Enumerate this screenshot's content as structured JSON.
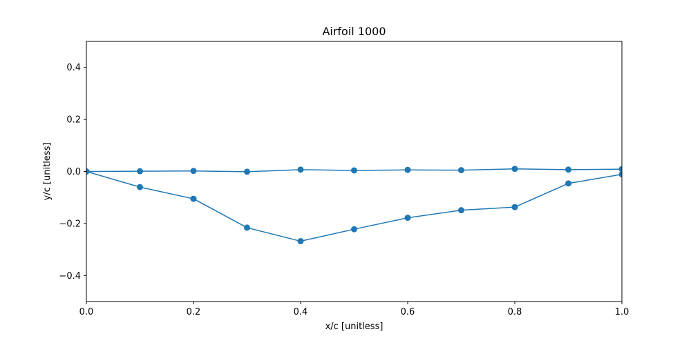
{
  "chart_data": {
    "type": "line",
    "title": "Airfoil 1000",
    "xlabel": "x/c [unitless]",
    "ylabel": "y/c [unitless]",
    "xlim": [
      0.0,
      1.0
    ],
    "ylim": [
      -0.5,
      0.5
    ],
    "xticks": [
      0.0,
      0.2,
      0.4,
      0.6,
      0.8,
      1.0
    ],
    "xtick_labels": [
      "0.0",
      "0.2",
      "0.4",
      "0.6",
      "0.8",
      "1.0"
    ],
    "yticks": [
      -0.4,
      -0.2,
      0.0,
      0.2,
      0.4
    ],
    "ytick_labels": [
      "−0.4",
      "−0.2",
      "0.0",
      "0.2",
      "0.4"
    ],
    "grid": false,
    "color": "#1f77b4",
    "series": [
      {
        "x": [
          0.0,
          0.1,
          0.2,
          0.3,
          0.4,
          0.5,
          0.6,
          0.7,
          0.8,
          0.9,
          1.0
        ],
        "y": [
          0.0,
          0.001,
          0.002,
          -0.001,
          0.007,
          0.004,
          0.006,
          0.005,
          0.01,
          0.007,
          0.009
        ]
      },
      {
        "x": [
          0.0,
          0.1,
          0.2,
          0.3,
          0.4,
          0.5,
          0.6,
          0.7,
          0.8,
          0.9,
          1.0
        ],
        "y": [
          0.0,
          -0.06,
          -0.105,
          -0.216,
          -0.268,
          -0.222,
          -0.178,
          -0.149,
          -0.137,
          -0.046,
          -0.011
        ]
      }
    ]
  }
}
